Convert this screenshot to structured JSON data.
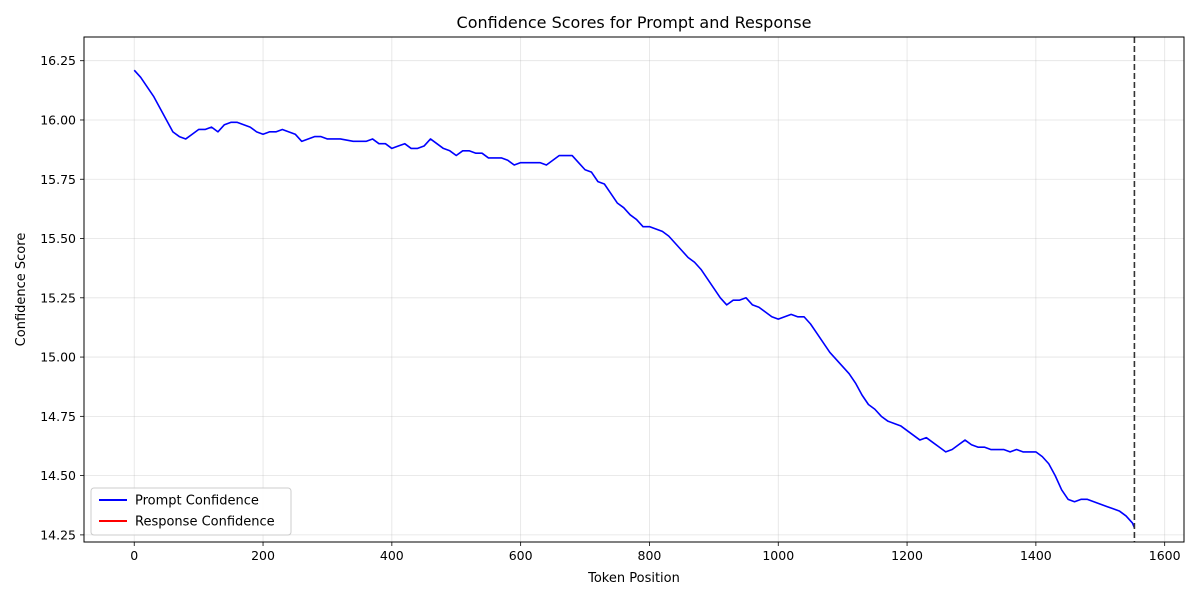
{
  "chart_data": {
    "type": "line",
    "title": "Confidence Scores for Prompt and Response",
    "xlabel": "Token Position",
    "ylabel": "Confidence Score",
    "xlim": [
      -78,
      1630
    ],
    "ylim": [
      14.22,
      16.35
    ],
    "xticks": [
      0,
      200,
      400,
      600,
      800,
      1000,
      1200,
      1400,
      1600
    ],
    "xtick_labels": [
      "0",
      "200",
      "400",
      "600",
      "800",
      "1000",
      "1200",
      "1400",
      "1600"
    ],
    "yticks": [
      14.25,
      14.5,
      14.75,
      15.0,
      15.25,
      15.5,
      15.75,
      16.0,
      16.25
    ],
    "ytick_labels": [
      "14.25",
      "14.50",
      "14.75",
      "15.00",
      "15.25",
      "15.50",
      "15.75",
      "16.00",
      "16.25"
    ],
    "grid": true,
    "legend_position": "lower left",
    "vertical_line": {
      "x": 1553,
      "style": "dashed",
      "color": "#333333"
    },
    "series": [
      {
        "name": "Prompt Confidence",
        "color": "#0000ff",
        "x": [
          0,
          10,
          20,
          30,
          40,
          50,
          60,
          70,
          80,
          90,
          100,
          110,
          120,
          130,
          140,
          150,
          160,
          170,
          180,
          190,
          200,
          210,
          220,
          230,
          240,
          250,
          260,
          270,
          280,
          290,
          300,
          320,
          340,
          360,
          370,
          380,
          390,
          400,
          410,
          420,
          430,
          440,
          450,
          460,
          470,
          480,
          490,
          500,
          510,
          520,
          530,
          540,
          550,
          560,
          570,
          580,
          590,
          600,
          610,
          620,
          630,
          640,
          650,
          660,
          670,
          680,
          690,
          700,
          710,
          720,
          730,
          740,
          750,
          760,
          770,
          780,
          790,
          800,
          810,
          820,
          830,
          840,
          850,
          860,
          870,
          880,
          890,
          900,
          910,
          920,
          930,
          940,
          950,
          960,
          970,
          980,
          990,
          1000,
          1010,
          1020,
          1030,
          1040,
          1050,
          1060,
          1070,
          1080,
          1090,
          1100,
          1110,
          1120,
          1130,
          1140,
          1150,
          1160,
          1170,
          1180,
          1190,
          1200,
          1210,
          1220,
          1230,
          1240,
          1250,
          1260,
          1270,
          1280,
          1290,
          1300,
          1310,
          1320,
          1330,
          1340,
          1350,
          1360,
          1370,
          1380,
          1390,
          1400,
          1410,
          1420,
          1430,
          1440,
          1450,
          1460,
          1470,
          1480,
          1490,
          1500,
          1510,
          1520,
          1530,
          1540,
          1550,
          1553
        ],
        "values": [
          16.21,
          16.18,
          16.14,
          16.1,
          16.05,
          16.0,
          15.95,
          15.93,
          15.92,
          15.94,
          15.96,
          15.96,
          15.97,
          15.95,
          15.98,
          15.99,
          15.99,
          15.98,
          15.97,
          15.95,
          15.94,
          15.95,
          15.95,
          15.96,
          15.95,
          15.94,
          15.91,
          15.92,
          15.93,
          15.93,
          15.92,
          15.92,
          15.91,
          15.91,
          15.92,
          15.9,
          15.9,
          15.88,
          15.89,
          15.9,
          15.88,
          15.88,
          15.89,
          15.92,
          15.9,
          15.88,
          15.87,
          15.85,
          15.87,
          15.87,
          15.86,
          15.86,
          15.84,
          15.84,
          15.84,
          15.83,
          15.81,
          15.82,
          15.82,
          15.82,
          15.82,
          15.81,
          15.83,
          15.85,
          15.85,
          15.85,
          15.82,
          15.79,
          15.78,
          15.74,
          15.73,
          15.69,
          15.65,
          15.63,
          15.6,
          15.58,
          15.55,
          15.55,
          15.54,
          15.53,
          15.51,
          15.48,
          15.45,
          15.42,
          15.4,
          15.37,
          15.33,
          15.29,
          15.25,
          15.22,
          15.24,
          15.24,
          15.25,
          15.22,
          15.21,
          15.19,
          15.17,
          15.16,
          15.17,
          15.18,
          15.17,
          15.17,
          15.14,
          15.1,
          15.06,
          15.02,
          14.99,
          14.96,
          14.93,
          14.89,
          14.84,
          14.8,
          14.78,
          14.75,
          14.73,
          14.72,
          14.71,
          14.69,
          14.67,
          14.65,
          14.66,
          14.64,
          14.62,
          14.6,
          14.61,
          14.63,
          14.65,
          14.63,
          14.62,
          14.62,
          14.61,
          14.61,
          14.61,
          14.6,
          14.61,
          14.6,
          14.6,
          14.6,
          14.58,
          14.55,
          14.5,
          14.44,
          14.4,
          14.39,
          14.4,
          14.4,
          14.39,
          14.38,
          14.37,
          14.36,
          14.35,
          14.33,
          14.3,
          14.28
        ]
      },
      {
        "name": "Response Confidence",
        "color": "#ff0000",
        "x": [],
        "values": []
      }
    ]
  }
}
